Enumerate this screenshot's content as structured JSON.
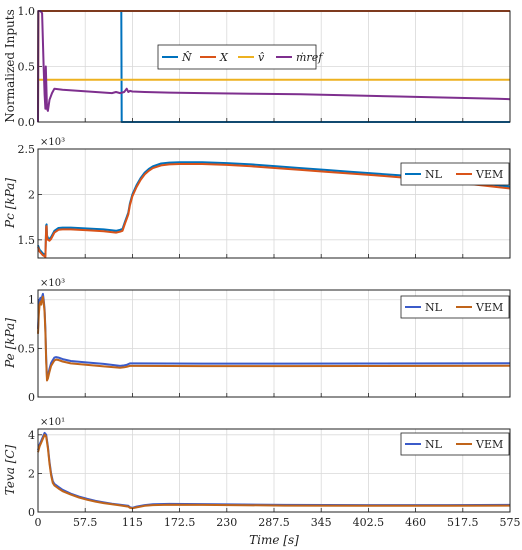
{
  "chart_data": [
    {
      "type": "line",
      "ylabel": "Normalized Inputs",
      "ylim": [
        0,
        1
      ],
      "xlim": [
        0,
        575
      ],
      "yticks": [
        "0.0",
        "0.5",
        "1.0"
      ],
      "ytick_values": [
        0,
        0.5,
        1
      ],
      "grid": true,
      "legend": {
        "placement": "top-center",
        "entries": [
          "N̂",
          "X",
          "v̂",
          "ṁref"
        ]
      },
      "series": [
        {
          "name": "N̂",
          "color": "#0072BD",
          "x": [
            0,
            101,
            101.5,
            102,
            575
          ],
          "y": [
            1,
            1,
            1,
            0,
            0
          ]
        },
        {
          "name": "X",
          "color": "#D95319",
          "x": [
            0,
            0.5,
            575
          ],
          "y": [
            0,
            1,
            1
          ]
        },
        {
          "name": "v̂",
          "color": "#EDB120",
          "x": [
            0,
            575
          ],
          "y": [
            0.38,
            0.38
          ]
        },
        {
          "name": "ṁref",
          "color": "#7E2F8E",
          "x": [
            0,
            0.4,
            1,
            3,
            5,
            7,
            8,
            9,
            9.5,
            11,
            12,
            14,
            17,
            20,
            30,
            50,
            70,
            90,
            95,
            100,
            105,
            108,
            110,
            112,
            115,
            130,
            160,
            200,
            260,
            320,
            380,
            440,
            500,
            560,
            575
          ],
          "y": [
            0,
            1,
            1,
            1,
            0.98,
            0.48,
            0.25,
            0.12,
            0.5,
            0.12,
            0.1,
            0.2,
            0.26,
            0.3,
            0.29,
            0.28,
            0.27,
            0.26,
            0.27,
            0.26,
            0.27,
            0.3,
            0.27,
            0.28,
            0.275,
            0.27,
            0.265,
            0.26,
            0.255,
            0.25,
            0.24,
            0.23,
            0.22,
            0.21,
            0.205
          ]
        }
      ]
    },
    {
      "type": "line",
      "ylabel": "Pc [kPa]",
      "ylim": [
        1.3,
        2.5
      ],
      "xlim": [
        0,
        575
      ],
      "yticks": [
        "1.5",
        "2",
        "2.5"
      ],
      "ytick_values": [
        1.5,
        2,
        2.5
      ],
      "multiplier": "×10³",
      "grid": true,
      "legend": {
        "placement": "top-right",
        "entries": [
          "NL",
          "VEM"
        ]
      },
      "series": [
        {
          "name": "NL",
          "color": "#0072BD",
          "x": [
            0,
            2,
            4,
            6,
            8,
            9,
            10,
            10.5,
            11,
            12,
            14,
            16,
            20,
            25,
            30,
            40,
            60,
            80,
            95,
            100,
            103,
            106,
            108,
            110,
            112,
            115,
            120,
            125,
            130,
            135,
            140,
            150,
            160,
            172.5,
            200,
            230,
            260,
            290,
            320,
            350,
            380,
            410,
            440,
            470,
            500,
            530,
            560,
            575
          ],
          "y": [
            1.44,
            1.39,
            1.37,
            1.35,
            1.34,
            1.33,
            1.66,
            1.67,
            1.55,
            1.52,
            1.51,
            1.53,
            1.6,
            1.63,
            1.635,
            1.635,
            1.625,
            1.615,
            1.6,
            1.61,
            1.62,
            1.7,
            1.75,
            1.8,
            1.9,
            2.0,
            2.1,
            2.18,
            2.24,
            2.28,
            2.31,
            2.34,
            2.35,
            2.355,
            2.355,
            2.345,
            2.33,
            2.31,
            2.29,
            2.27,
            2.25,
            2.23,
            2.21,
            2.18,
            2.155,
            2.13,
            2.1,
            2.085
          ]
        },
        {
          "name": "VEM",
          "color": "#D95319",
          "x": [
            0,
            2,
            4,
            6,
            8,
            9,
            10,
            10.5,
            11,
            12,
            14,
            16,
            20,
            25,
            30,
            40,
            60,
            80,
            95,
            100,
            103,
            106,
            108,
            110,
            112,
            115,
            120,
            125,
            130,
            135,
            140,
            150,
            160,
            172.5,
            200,
            230,
            260,
            290,
            320,
            350,
            380,
            410,
            440,
            470,
            500,
            530,
            560,
            575
          ],
          "y": [
            1.42,
            1.37,
            1.35,
            1.33,
            1.32,
            1.31,
            1.64,
            1.65,
            1.53,
            1.5,
            1.49,
            1.51,
            1.58,
            1.61,
            1.615,
            1.615,
            1.605,
            1.595,
            1.58,
            1.59,
            1.6,
            1.68,
            1.73,
            1.78,
            1.88,
            1.98,
            2.08,
            2.16,
            2.22,
            2.26,
            2.29,
            2.32,
            2.33,
            2.335,
            2.335,
            2.325,
            2.31,
            2.29,
            2.27,
            2.25,
            2.23,
            2.21,
            2.19,
            2.16,
            2.135,
            2.11,
            2.08,
            2.065
          ]
        }
      ]
    },
    {
      "type": "line",
      "ylabel": "Pe [kPa]",
      "ylim": [
        0,
        1.1
      ],
      "xlim": [
        0,
        575
      ],
      "yticks": [
        "0",
        "0.5",
        "1"
      ],
      "ytick_values": [
        0,
        0.5,
        1
      ],
      "multiplier": "×10³",
      "grid": true,
      "legend": {
        "placement": "top-right",
        "entries": [
          "NL",
          "VEM"
        ]
      },
      "series": [
        {
          "name": "NL",
          "color": "#3B5BC9",
          "x": [
            0,
            1,
            2,
            3,
            4,
            5,
            6,
            7,
            8,
            9,
            10,
            11,
            12,
            14,
            16,
            18,
            20,
            22,
            25,
            30,
            40,
            60,
            80,
            100,
            105,
            108,
            112,
            120,
            200,
            300,
            400,
            500,
            575
          ],
          "y": [
            0.7,
            0.9,
            1.0,
            1.02,
            0.98,
            1.03,
            1.06,
            1.0,
            0.9,
            0.7,
            0.4,
            0.2,
            0.22,
            0.29,
            0.35,
            0.38,
            0.405,
            0.41,
            0.405,
            0.39,
            0.37,
            0.355,
            0.34,
            0.32,
            0.325,
            0.33,
            0.345,
            0.345,
            0.343,
            0.343,
            0.344,
            0.345,
            0.346
          ]
        },
        {
          "name": "VEM",
          "color": "#C0641A",
          "x": [
            0,
            1,
            2,
            3,
            4,
            5,
            6,
            7,
            8,
            9,
            10,
            11,
            12,
            14,
            16,
            18,
            20,
            22,
            25,
            30,
            40,
            60,
            80,
            100,
            105,
            108,
            112,
            120,
            200,
            300,
            400,
            500,
            575
          ],
          "y": [
            0.65,
            0.85,
            0.95,
            0.98,
            0.95,
            1.0,
            1.03,
            0.97,
            0.87,
            0.66,
            0.36,
            0.17,
            0.19,
            0.26,
            0.32,
            0.35,
            0.375,
            0.385,
            0.38,
            0.365,
            0.345,
            0.33,
            0.315,
            0.3,
            0.305,
            0.31,
            0.32,
            0.32,
            0.318,
            0.318,
            0.319,
            0.32,
            0.321
          ]
        }
      ]
    },
    {
      "type": "line",
      "ylabel": "Teva [C]",
      "ylim": [
        0,
        4.3
      ],
      "xlim": [
        0,
        575
      ],
      "xlabel": "Time [s]",
      "xticks": [
        "0",
        "57.5",
        "115",
        "172.5",
        "230",
        "287.5",
        "345",
        "402.5",
        "460",
        "517.5",
        "575"
      ],
      "xtick_values": [
        0,
        57.5,
        115,
        172.5,
        230,
        287.5,
        345,
        402.5,
        460,
        517.5,
        575
      ],
      "yticks": [
        "0",
        "2",
        "4"
      ],
      "ytick_values": [
        0,
        2,
        4
      ],
      "multiplier": "×10¹",
      "grid": true,
      "legend": {
        "placement": "top-right",
        "entries": [
          "NL",
          "VEM"
        ]
      },
      "series": [
        {
          "name": "NL",
          "color": "#3B5BC9",
          "x": [
            0,
            2,
            4,
            6,
            8,
            10,
            12,
            14,
            16,
            18,
            20,
            25,
            30,
            40,
            50,
            60,
            70,
            80,
            90,
            100,
            110,
            112,
            115,
            120,
            130,
            140,
            160,
            200,
            250,
            300,
            400,
            500,
            575
          ],
          "y": [
            3.2,
            3.5,
            3.7,
            3.9,
            4.1,
            4.0,
            3.4,
            2.6,
            2.0,
            1.6,
            1.45,
            1.3,
            1.15,
            0.95,
            0.8,
            0.68,
            0.58,
            0.5,
            0.43,
            0.38,
            0.32,
            0.25,
            0.22,
            0.28,
            0.36,
            0.4,
            0.42,
            0.41,
            0.39,
            0.37,
            0.36,
            0.36,
            0.37
          ]
        },
        {
          "name": "VEM",
          "color": "#C0641A",
          "x": [
            0,
            2,
            4,
            6,
            8,
            10,
            12,
            14,
            16,
            18,
            20,
            25,
            30,
            40,
            50,
            60,
            70,
            80,
            90,
            100,
            110,
            112,
            115,
            120,
            130,
            140,
            160,
            200,
            250,
            300,
            400,
            500,
            575
          ],
          "y": [
            3.1,
            3.4,
            3.6,
            3.8,
            4.0,
            3.9,
            3.3,
            2.5,
            1.9,
            1.5,
            1.38,
            1.22,
            1.08,
            0.9,
            0.75,
            0.63,
            0.54,
            0.46,
            0.4,
            0.34,
            0.28,
            0.22,
            0.19,
            0.24,
            0.32,
            0.36,
            0.38,
            0.37,
            0.35,
            0.33,
            0.32,
            0.32,
            0.33
          ]
        }
      ]
    }
  ]
}
